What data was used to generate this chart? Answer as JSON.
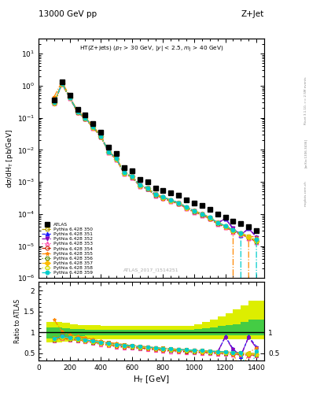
{
  "title_top": "13000 GeV pp",
  "title_right": "Z+Jet",
  "panel_title": "HT(Z+jets) (p_{T} > 30 GeV, |y| < 2.5, m_{j} > 40 GeV)",
  "xlabel": "H_{T} [GeV]",
  "ylabel_main": "d#sigma/dH_{T} [pb/GeV]",
  "ylabel_ratio": "Ratio to ATLAS",
  "watermark": "ATLAS_2017_I1514251",
  "right_label1": "Rivet 3.1.10, >= 2.5M events",
  "right_label2": "[arXiv:1306.3436]",
  "right_label3": "mcplots.cern.ch",
  "ht_bins": [
    100,
    150,
    200,
    250,
    300,
    350,
    400,
    450,
    500,
    550,
    600,
    650,
    700,
    750,
    800,
    850,
    900,
    950,
    1000,
    1050,
    1100,
    1150,
    1200,
    1250,
    1300,
    1350,
    1400
  ],
  "atlas_vals": [
    0.35,
    1.3,
    0.5,
    0.18,
    0.12,
    0.065,
    0.035,
    0.012,
    0.0075,
    0.0028,
    0.0022,
    0.0012,
    0.001,
    0.00065,
    0.00055,
    0.00045,
    0.00038,
    0.00028,
    0.00022,
    0.00018,
    0.00014,
    0.0001,
    8e-05,
    6e-05,
    5e-05,
    4e-05,
    3e-05
  ],
  "series": [
    {
      "label": "Pythia 6.428 350",
      "color": "#b8a000",
      "linestyle": "--",
      "marker": "s",
      "mfc": "none",
      "ratio": [
        0.88,
        0.92,
        0.88,
        0.88,
        0.85,
        0.82,
        0.78,
        0.75,
        0.72,
        0.7,
        0.68,
        0.66,
        0.65,
        0.63,
        0.62,
        0.6,
        0.59,
        0.58,
        0.57,
        0.56,
        0.55,
        0.54,
        0.53,
        0.52,
        0.51,
        0.5,
        0.49
      ]
    },
    {
      "label": "Pythia 6.428 351",
      "color": "#1a1aff",
      "linestyle": "--",
      "marker": "^",
      "mfc": "#1a1aff",
      "ratio": [
        0.82,
        0.88,
        0.85,
        0.83,
        0.8,
        0.77,
        0.74,
        0.71,
        0.68,
        0.66,
        0.65,
        0.63,
        0.62,
        0.6,
        0.58,
        0.57,
        0.56,
        0.55,
        0.54,
        0.53,
        0.52,
        0.51,
        0.9,
        0.6,
        0.42,
        0.9,
        0.65
      ]
    },
    {
      "label": "Pythia 6.428 352",
      "color": "#8800bb",
      "linestyle": "-.",
      "marker": "v",
      "mfc": "#8800bb",
      "ratio": [
        0.84,
        0.9,
        0.86,
        0.84,
        0.81,
        0.78,
        0.75,
        0.73,
        0.7,
        0.68,
        0.67,
        0.65,
        0.64,
        0.62,
        0.6,
        0.59,
        0.58,
        0.57,
        0.56,
        0.55,
        0.54,
        0.53,
        0.88,
        0.58,
        0.45,
        0.88,
        0.62
      ]
    },
    {
      "label": "Pythia 6.428 353",
      "color": "#ff44aa",
      "linestyle": ":",
      "marker": "^",
      "mfc": "none",
      "ratio": [
        0.8,
        0.86,
        0.82,
        0.8,
        0.77,
        0.74,
        0.71,
        0.68,
        0.65,
        0.63,
        0.62,
        0.6,
        0.59,
        0.57,
        0.55,
        0.54,
        0.53,
        0.52,
        0.51,
        0.5,
        0.49,
        0.48,
        0.47,
        0.46,
        0.45,
        0.44,
        0.43
      ]
    },
    {
      "label": "Pythia 6.428 354",
      "color": "#cc2200",
      "linestyle": "--",
      "marker": "o",
      "mfc": "none",
      "ratio": [
        0.81,
        0.87,
        0.83,
        0.82,
        0.79,
        0.76,
        0.73,
        0.7,
        0.67,
        0.65,
        0.64,
        0.62,
        0.61,
        0.59,
        0.57,
        0.56,
        0.55,
        0.54,
        0.53,
        0.52,
        0.51,
        0.5,
        0.49,
        0.48,
        0.47,
        0.46,
        0.45
      ]
    },
    {
      "label": "Pythia 6.428 355",
      "color": "#ff8800",
      "linestyle": "-.",
      "marker": "*",
      "mfc": "#ff8800",
      "ratio": [
        1.3,
        1.02,
        0.94,
        0.91,
        0.87,
        0.83,
        0.79,
        0.76,
        0.73,
        0.71,
        0.69,
        0.67,
        0.65,
        0.63,
        0.62,
        0.61,
        0.59,
        0.58,
        0.57,
        0.56,
        0.55,
        0.54,
        0.53,
        0.52,
        0.0,
        0.52,
        0.62
      ]
    },
    {
      "label": "Pythia 6.428 356",
      "color": "#558800",
      "linestyle": ":",
      "marker": "s",
      "mfc": "none",
      "ratio": [
        0.82,
        0.87,
        0.84,
        0.82,
        0.79,
        0.76,
        0.73,
        0.7,
        0.68,
        0.66,
        0.65,
        0.63,
        0.62,
        0.6,
        0.58,
        0.57,
        0.56,
        0.55,
        0.54,
        0.53,
        0.52,
        0.51,
        0.5,
        0.49,
        0.48,
        0.47,
        0.46
      ]
    },
    {
      "label": "Pythia 6.428 357",
      "color": "#ffbb00",
      "linestyle": "--",
      "marker": "D",
      "mfc": "#ffbb00",
      "ratio": [
        0.83,
        0.88,
        0.85,
        0.83,
        0.8,
        0.77,
        0.74,
        0.71,
        0.69,
        0.67,
        0.66,
        0.64,
        0.63,
        0.61,
        0.59,
        0.58,
        0.57,
        0.56,
        0.55,
        0.54,
        0.53,
        0.52,
        0.51,
        0.5,
        0.49,
        0.48,
        0.47
      ]
    },
    {
      "label": "Pythia 6.428 358",
      "color": "#ccdd00",
      "linestyle": ":",
      "marker": "s",
      "mfc": "none",
      "ratio": [
        0.84,
        0.89,
        0.86,
        0.84,
        0.81,
        0.78,
        0.75,
        0.72,
        0.7,
        0.68,
        0.67,
        0.65,
        0.64,
        0.62,
        0.6,
        0.59,
        0.58,
        0.57,
        0.56,
        0.55,
        0.54,
        0.53,
        0.52,
        0.51,
        0.5,
        0.49,
        0.48
      ]
    },
    {
      "label": "Pythia 6.428 359",
      "color": "#00cccc",
      "linestyle": "-.",
      "marker": "o",
      "mfc": "#00cccc",
      "ratio": [
        0.85,
        0.9,
        0.87,
        0.85,
        0.82,
        0.79,
        0.76,
        0.73,
        0.71,
        0.69,
        0.68,
        0.66,
        0.65,
        0.63,
        0.61,
        0.6,
        0.59,
        0.58,
        0.57,
        0.56,
        0.55,
        0.54,
        0.53,
        0.52,
        0.51,
        0.0,
        0.55
      ]
    }
  ],
  "ratio_band_inner_lo": [
    0.85,
    0.88,
    0.9,
    0.91,
    0.92,
    0.93,
    0.93,
    0.93,
    0.93,
    0.93,
    0.93,
    0.93,
    0.93,
    0.93,
    0.93,
    0.93,
    0.93,
    0.93,
    0.93,
    0.93,
    0.93,
    0.93,
    0.93,
    0.93,
    0.93,
    0.93,
    0.93
  ],
  "ratio_band_inner_hi": [
    1.12,
    1.1,
    1.08,
    1.07,
    1.06,
    1.06,
    1.06,
    1.06,
    1.06,
    1.06,
    1.06,
    1.06,
    1.06,
    1.06,
    1.06,
    1.06,
    1.06,
    1.06,
    1.06,
    1.08,
    1.1,
    1.12,
    1.15,
    1.18,
    1.2,
    1.25,
    1.3
  ],
  "ratio_band_outer_lo": [
    0.75,
    0.78,
    0.8,
    0.82,
    0.83,
    0.83,
    0.84,
    0.84,
    0.84,
    0.84,
    0.84,
    0.84,
    0.84,
    0.84,
    0.84,
    0.84,
    0.84,
    0.84,
    0.84,
    0.84,
    0.84,
    0.84,
    0.84,
    0.84,
    0.84,
    0.84,
    0.84
  ],
  "ratio_band_outer_hi": [
    1.25,
    1.22,
    1.2,
    1.18,
    1.17,
    1.17,
    1.16,
    1.16,
    1.16,
    1.16,
    1.16,
    1.16,
    1.16,
    1.16,
    1.16,
    1.16,
    1.16,
    1.16,
    1.16,
    1.2,
    1.25,
    1.3,
    1.38,
    1.45,
    1.55,
    1.65,
    1.75
  ],
  "ratio_band_inner_color": "#44cc44",
  "ratio_band_outer_color": "#ddee00",
  "xlim": [
    0,
    1450
  ],
  "ylim_main_lo": 1e-06,
  "ylim_main_hi": 30,
  "ylim_ratio_lo": 0.32,
  "ylim_ratio_hi": 2.2
}
